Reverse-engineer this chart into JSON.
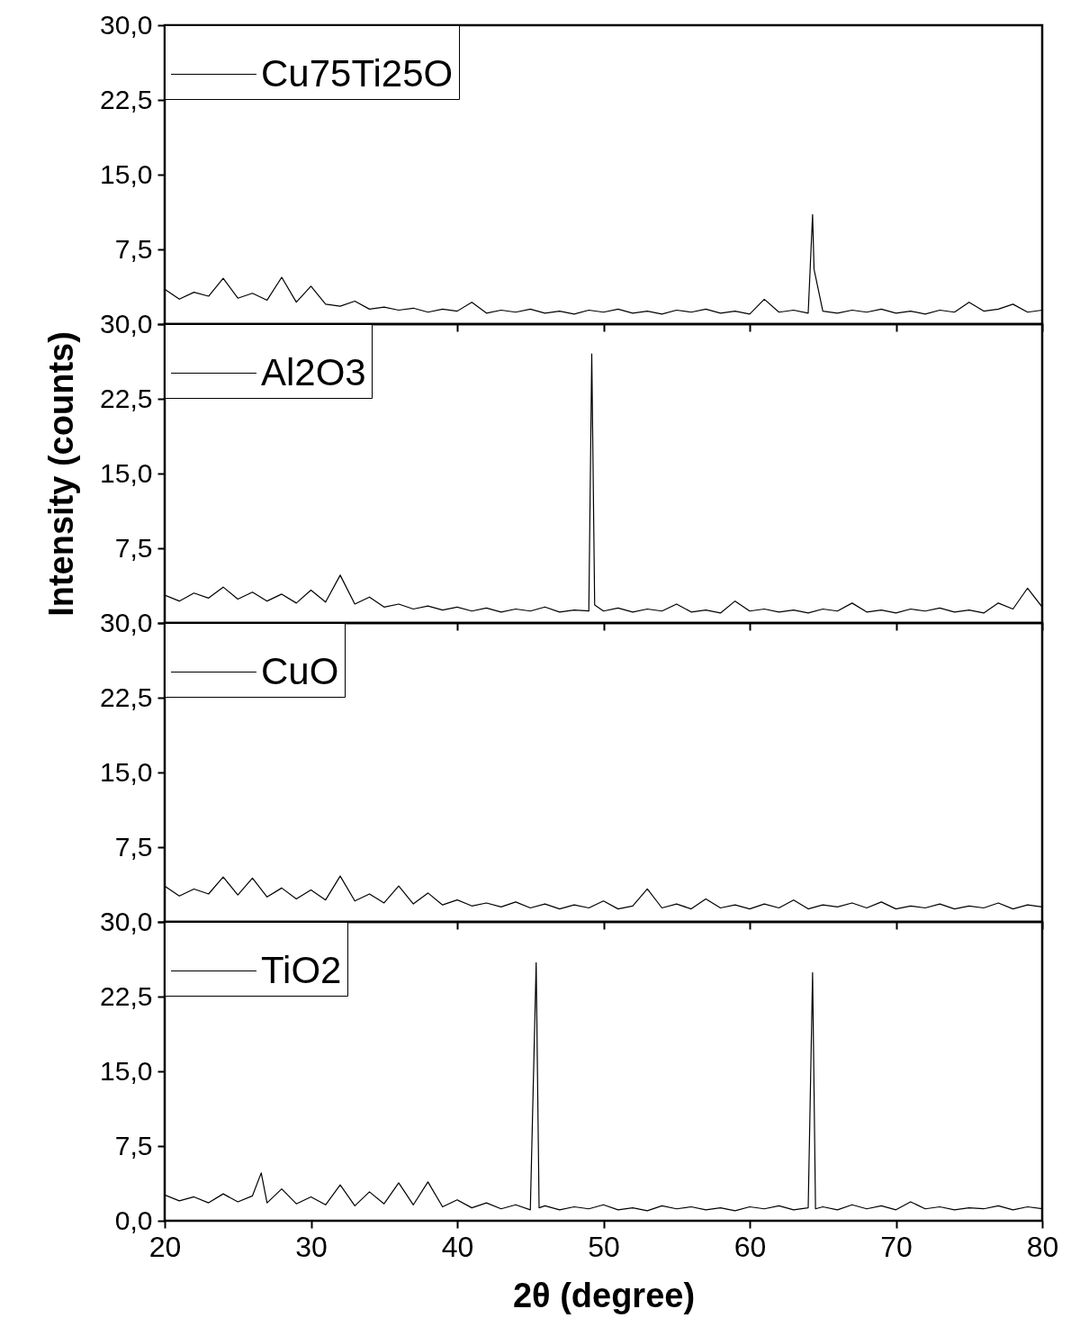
{
  "chart_data": [
    {
      "type": "line",
      "legend": "top left",
      "grid": false,
      "tick_labels": "y",
      "xlim": [
        20,
        80
      ],
      "xticks": [
        20,
        30,
        40,
        50,
        60,
        70,
        80
      ],
      "ylim": [
        0,
        30
      ],
      "yticks": [
        {
          "value": 0,
          "label": null
        },
        {
          "value": 7.5,
          "label": "7,5"
        },
        {
          "value": 15,
          "label": "15,0"
        },
        {
          "value": 22.5,
          "label": "22,5"
        },
        {
          "value": 30,
          "label": "30,0"
        }
      ],
      "series": [
        {
          "name": "Cu75Ti25O",
          "color": "#000000",
          "x": [
            20,
            21,
            22,
            23,
            24,
            25,
            26,
            27,
            28,
            29,
            30,
            31,
            32,
            33,
            34,
            35,
            36,
            37,
            38,
            39,
            40,
            41,
            42,
            43,
            44,
            45,
            46,
            47,
            48,
            49,
            50,
            51,
            52,
            53,
            54,
            55,
            56,
            57,
            58,
            59,
            60,
            61,
            62,
            63,
            64,
            64.3,
            64.4,
            65,
            66,
            67,
            68,
            69,
            70,
            71,
            72,
            73,
            74,
            75,
            76,
            77,
            78,
            79,
            80
          ],
          "values": [
            3.5,
            2.5,
            3.2,
            2.8,
            4.6,
            2.6,
            3.1,
            2.4,
            4.7,
            2.2,
            3.8,
            2.0,
            1.8,
            2.3,
            1.5,
            1.7,
            1.4,
            1.6,
            1.2,
            1.5,
            1.3,
            2.2,
            1.1,
            1.4,
            1.2,
            1.5,
            1.1,
            1.3,
            1.0,
            1.4,
            1.2,
            1.5,
            1.1,
            1.3,
            1.0,
            1.4,
            1.2,
            1.5,
            1.1,
            1.3,
            1.0,
            2.5,
            1.2,
            1.4,
            1.1,
            11.0,
            5.5,
            1.3,
            1.1,
            1.4,
            1.2,
            1.5,
            1.1,
            1.3,
            1.0,
            1.4,
            1.2,
            2.2,
            1.3,
            1.5,
            2.0,
            1.2,
            1.4
          ]
        }
      ]
    },
    {
      "type": "line",
      "legend": "top left",
      "grid": false,
      "tick_labels": "y",
      "ylabel": "Intensity (counts)",
      "xlim": [
        20,
        80
      ],
      "xticks": [
        20,
        30,
        40,
        50,
        60,
        70,
        80
      ],
      "ylim": [
        0,
        30
      ],
      "yticks": [
        {
          "value": 0,
          "label": null
        },
        {
          "value": 7.5,
          "label": "7,5"
        },
        {
          "value": 15,
          "label": "15,0"
        },
        {
          "value": 22.5,
          "label": "22,5"
        },
        {
          "value": 30,
          "label": "30,0"
        }
      ],
      "series": [
        {
          "name": "Al2O3",
          "color": "#000000",
          "x": [
            20,
            21,
            22,
            23,
            24,
            25,
            26,
            27,
            28,
            29,
            30,
            31,
            32,
            33,
            34,
            35,
            36,
            37,
            38,
            39,
            40,
            41,
            42,
            43,
            44,
            45,
            46,
            47,
            48,
            49,
            49.2,
            49.4,
            50,
            51,
            52,
            53,
            54,
            55,
            56,
            57,
            58,
            59,
            60,
            61,
            62,
            63,
            64,
            65,
            66,
            67,
            68,
            69,
            70,
            71,
            72,
            73,
            74,
            75,
            76,
            77,
            78,
            79,
            80
          ],
          "values": [
            2.8,
            2.2,
            3.0,
            2.5,
            3.6,
            2.4,
            3.1,
            2.2,
            2.9,
            2.0,
            3.3,
            2.1,
            4.8,
            1.9,
            2.6,
            1.6,
            1.9,
            1.4,
            1.7,
            1.3,
            1.6,
            1.2,
            1.5,
            1.1,
            1.4,
            1.2,
            1.6,
            1.1,
            1.3,
            1.2,
            27.0,
            1.8,
            1.2,
            1.5,
            1.1,
            1.4,
            1.2,
            1.9,
            1.1,
            1.3,
            1.0,
            2.2,
            1.2,
            1.4,
            1.1,
            1.3,
            1.0,
            1.4,
            1.2,
            2.0,
            1.1,
            1.3,
            1.0,
            1.4,
            1.2,
            1.5,
            1.1,
            1.3,
            1.0,
            2.0,
            1.4,
            3.5,
            1.6
          ]
        }
      ]
    },
    {
      "type": "line",
      "legend": "top left",
      "grid": false,
      "tick_labels": "y",
      "xlim": [
        20,
        80
      ],
      "xticks": [
        20,
        30,
        40,
        50,
        60,
        70,
        80
      ],
      "ylim": [
        0,
        30
      ],
      "yticks": [
        {
          "value": 0,
          "label": null
        },
        {
          "value": 7.5,
          "label": "7,5"
        },
        {
          "value": 15,
          "label": "15,0"
        },
        {
          "value": 22.5,
          "label": "22,5"
        },
        {
          "value": 30,
          "label": "30,0"
        }
      ],
      "series": [
        {
          "name": "CuO",
          "color": "#000000",
          "x": [
            20,
            21,
            22,
            23,
            24,
            25,
            26,
            27,
            28,
            29,
            30,
            31,
            32,
            33,
            34,
            35,
            36,
            37,
            38,
            39,
            40,
            41,
            42,
            43,
            44,
            45,
            46,
            47,
            48,
            49,
            50,
            51,
            52,
            53,
            54,
            55,
            56,
            57,
            58,
            59,
            60,
            61,
            62,
            63,
            64,
            65,
            66,
            67,
            68,
            69,
            70,
            71,
            72,
            73,
            74,
            75,
            76,
            77,
            78,
            79,
            80
          ],
          "values": [
            3.6,
            2.6,
            3.3,
            2.8,
            4.5,
            2.7,
            4.4,
            2.5,
            3.4,
            2.3,
            3.2,
            2.2,
            4.6,
            2.1,
            2.8,
            1.9,
            3.6,
            1.8,
            2.9,
            1.7,
            2.2,
            1.6,
            1.9,
            1.5,
            2.0,
            1.4,
            1.8,
            1.3,
            1.7,
            1.4,
            2.1,
            1.3,
            1.6,
            3.3,
            1.4,
            1.8,
            1.3,
            2.3,
            1.4,
            1.7,
            1.3,
            1.8,
            1.4,
            2.2,
            1.3,
            1.7,
            1.5,
            1.9,
            1.4,
            2.0,
            1.3,
            1.6,
            1.4,
            1.8,
            1.3,
            1.6,
            1.4,
            1.9,
            1.3,
            1.7,
            1.5
          ]
        }
      ]
    },
    {
      "type": "line",
      "legend": "top left",
      "grid": false,
      "xlabel": "2θ (degree)",
      "xlim": [
        20,
        80
      ],
      "xticks": [
        20,
        30,
        40,
        50,
        60,
        70,
        80
      ],
      "ylim": [
        0,
        30
      ],
      "yticks": [
        {
          "value": 0,
          "label": "0,0"
        },
        {
          "value": 7.5,
          "label": "7,5"
        },
        {
          "value": 15,
          "label": "15,0"
        },
        {
          "value": 22.5,
          "label": "22,5"
        },
        {
          "value": 30,
          "label": "30,0"
        }
      ],
      "series": [
        {
          "name": "TiO2",
          "color": "#000000",
          "x": [
            20,
            21,
            22,
            23,
            24,
            25,
            26,
            26.6,
            27,
            28,
            29,
            30,
            31,
            32,
            33,
            34,
            35,
            36,
            37,
            38,
            39,
            40,
            41,
            42,
            43,
            44,
            45,
            45.4,
            45.6,
            46,
            47,
            48,
            49,
            50,
            51,
            52,
            53,
            54,
            55,
            56,
            57,
            58,
            59,
            60,
            61,
            62,
            63,
            64,
            64.3,
            64.5,
            65,
            66,
            67,
            68,
            69,
            70,
            71,
            72,
            73,
            74,
            75,
            76,
            77,
            78,
            79,
            80
          ],
          "values": [
            2.6,
            2.0,
            2.4,
            1.8,
            2.7,
            1.9,
            2.5,
            4.8,
            1.8,
            3.2,
            1.7,
            2.4,
            1.6,
            3.6,
            1.5,
            2.9,
            1.7,
            3.8,
            1.6,
            3.9,
            1.4,
            2.1,
            1.3,
            1.8,
            1.2,
            1.6,
            1.1,
            25.9,
            1.3,
            1.5,
            1.1,
            1.4,
            1.2,
            1.6,
            1.1,
            1.3,
            1.0,
            1.5,
            1.2,
            1.4,
            1.1,
            1.3,
            1.0,
            1.4,
            1.2,
            1.5,
            1.1,
            1.3,
            24.9,
            1.2,
            1.4,
            1.1,
            1.6,
            1.2,
            1.5,
            1.1,
            1.9,
            1.2,
            1.4,
            1.1,
            1.3,
            1.2,
            1.5,
            1.1,
            1.4,
            1.2
          ]
        }
      ]
    }
  ]
}
